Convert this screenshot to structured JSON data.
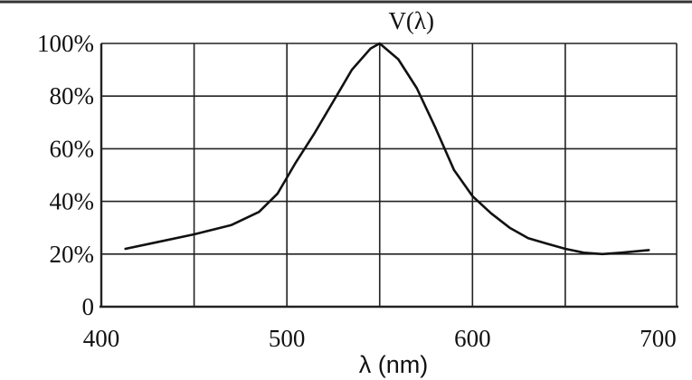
{
  "chart_data": {
    "type": "line",
    "xlabel": "λ (nm)",
    "ylabel": "",
    "xlim": [
      400,
      710
    ],
    "ylim": [
      0,
      100
    ],
    "x_ticks": [
      400,
      500,
      600,
      700
    ],
    "x_tick_labels": [
      "400",
      "500",
      "600",
      "700"
    ],
    "x_gridlines": [
      400,
      450,
      500,
      550,
      600,
      650,
      710
    ],
    "y_ticks": [
      0,
      20,
      40,
      60,
      80,
      100
    ],
    "y_tick_labels": [
      "0",
      "20%",
      "40%",
      "60%",
      "80%",
      "100%"
    ],
    "grid": true,
    "series": [
      {
        "name": "V(λ)",
        "x": [
          413,
          430,
          450,
          470,
          485,
          495,
          505,
          515,
          525,
          535,
          545,
          550,
          560,
          570,
          580,
          590,
          600,
          610,
          620,
          630,
          640,
          650,
          660,
          670,
          680,
          695
        ],
        "y": [
          22,
          24.5,
          27.5,
          31,
          36,
          43,
          55,
          66,
          78,
          90,
          98,
          100,
          94,
          83,
          68,
          52,
          42,
          35.5,
          30,
          26,
          24,
          22,
          20.5,
          20,
          20.5,
          21.5
        ]
      }
    ],
    "colors": {
      "line": "#111111",
      "grid": "#222222",
      "background": "#ffffff"
    }
  }
}
